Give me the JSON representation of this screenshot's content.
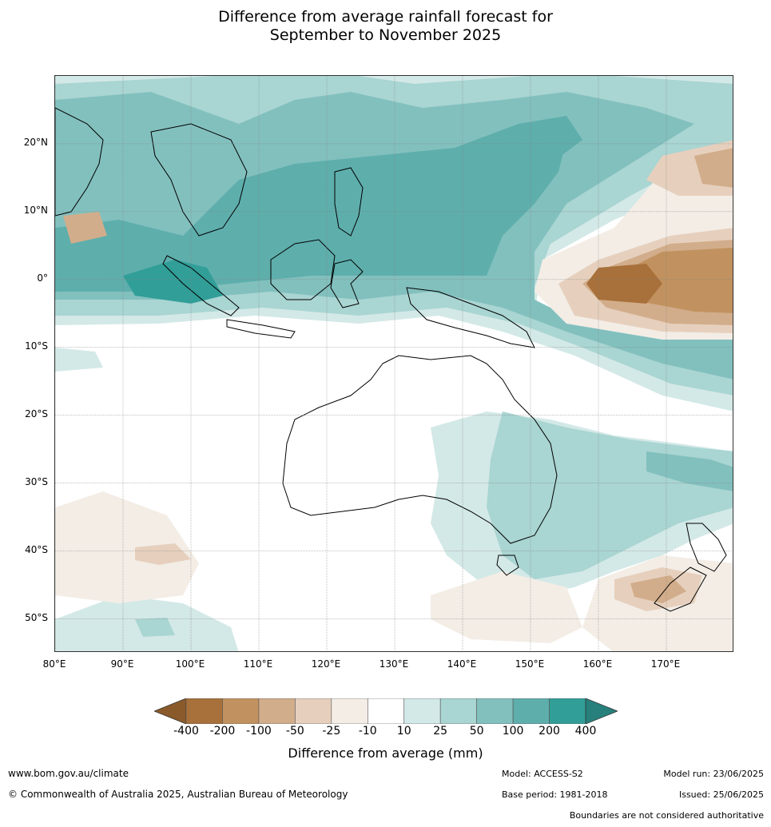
{
  "title_line1": "Difference from average rainfall forecast for",
  "title_line2": "September to November 2025",
  "map": {
    "lat_ticks": [
      "20°N",
      "10°N",
      "0°",
      "10°S",
      "20°S",
      "30°S",
      "40°S",
      "50°S"
    ],
    "lat_values": [
      20,
      10,
      0,
      -10,
      -20,
      -30,
      -40,
      -50
    ],
    "lon_ticks": [
      "80°E",
      "90°E",
      "100°E",
      "110°E",
      "120°E",
      "130°E",
      "140°E",
      "150°E",
      "160°E",
      "170°E"
    ],
    "lon_values": [
      80,
      90,
      100,
      110,
      120,
      130,
      140,
      150,
      160,
      170
    ],
    "lon_range": [
      80,
      180
    ],
    "lat_range": [
      -55,
      30
    ]
  },
  "legend": {
    "title": "Difference from average (mm)",
    "ticks": [
      "-400",
      "-200",
      "-100",
      "-50",
      "-25",
      "-10",
      "10",
      "25",
      "50",
      "100",
      "200",
      "400"
    ],
    "colors": [
      "#a8703a",
      "#c1925f",
      "#d2ad8b",
      "#e6d0bd",
      "#f3ede6",
      "#ffffff",
      "#d3e9e7",
      "#a9d5d2",
      "#82c0be",
      "#5eaeac",
      "#319e98"
    ],
    "low_extend_color": "#8a5a2b",
    "high_extend_color": "#27807c"
  },
  "footer": {
    "website": "www.bom.gov.au/climate",
    "copyright": "© Commonwealth of Australia 2025, Australian Bureau of Meteorology",
    "model": "Model: ACCESS-S2",
    "base_period": "Base period: 1981-2018",
    "model_run": "Model run: 23/06/2025",
    "issued": "Issued: 25/06/2025",
    "disclaimer": "Boundaries are not considered authoritative"
  }
}
